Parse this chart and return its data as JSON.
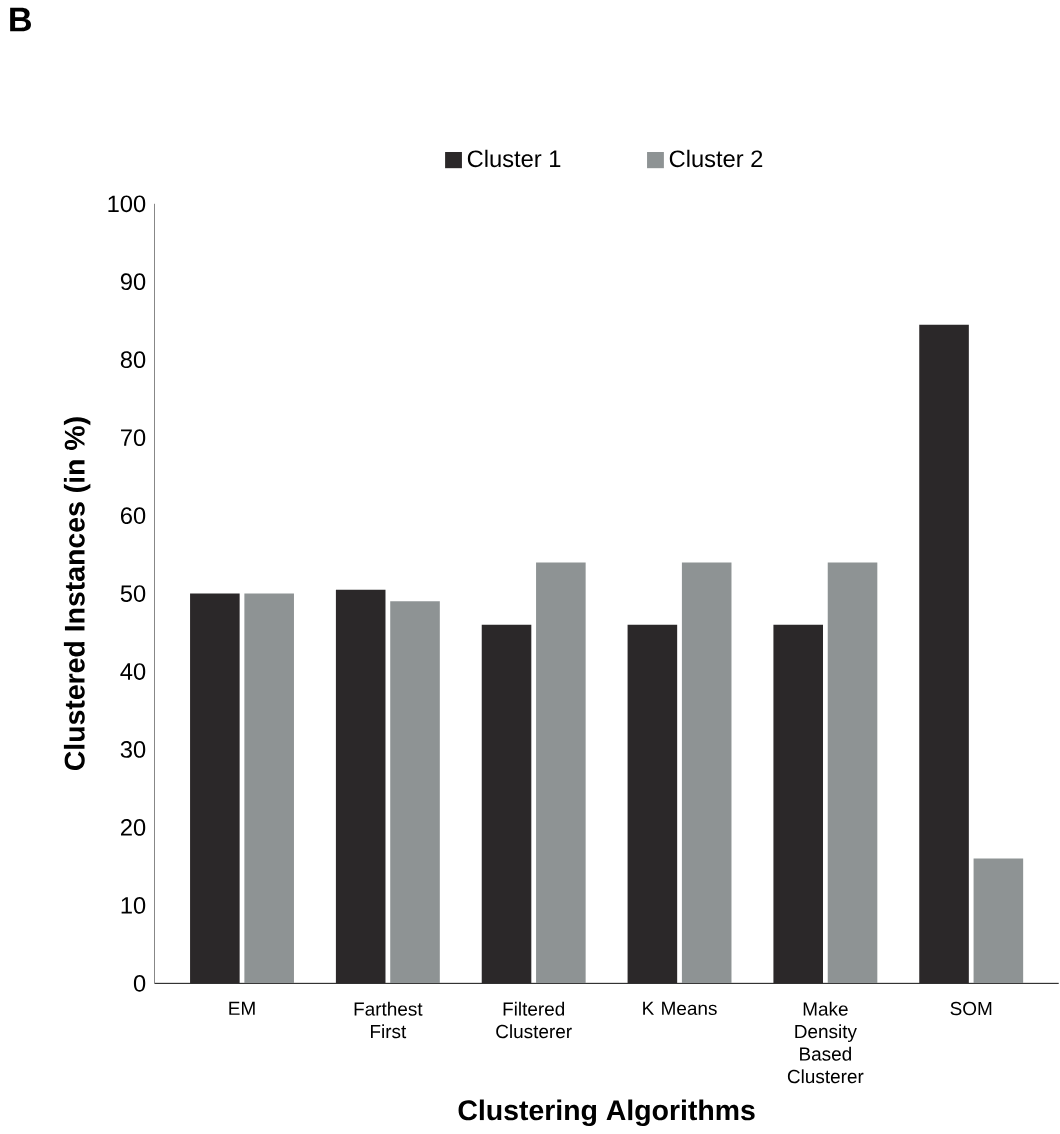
{
  "chart_data": {
    "type": "bar",
    "xlabel": "Clustering Algorithms",
    "ylabel": "Clustered Instances (in %)",
    "annotations": [
      "B"
    ],
    "categories": [
      "EM",
      "Farthest First",
      "Filtered Clusterer",
      "K Means",
      "Make Density Based Clusterer",
      "SOM"
    ],
    "series": [
      {
        "name": "Cluster 1",
        "color": "#2b2829",
        "values": [
          50,
          50.5,
          46,
          46,
          46,
          84.5
        ]
      },
      {
        "name": "Cluster 2",
        "color": "#8e9394",
        "values": [
          50,
          49,
          54,
          54,
          54,
          16
        ]
      }
    ],
    "ylim": [
      0,
      100
    ],
    "yticks": [
      0,
      10,
      20,
      30,
      40,
      50,
      60,
      70,
      80,
      90,
      100
    ],
    "legend": "top",
    "grid": false
  }
}
